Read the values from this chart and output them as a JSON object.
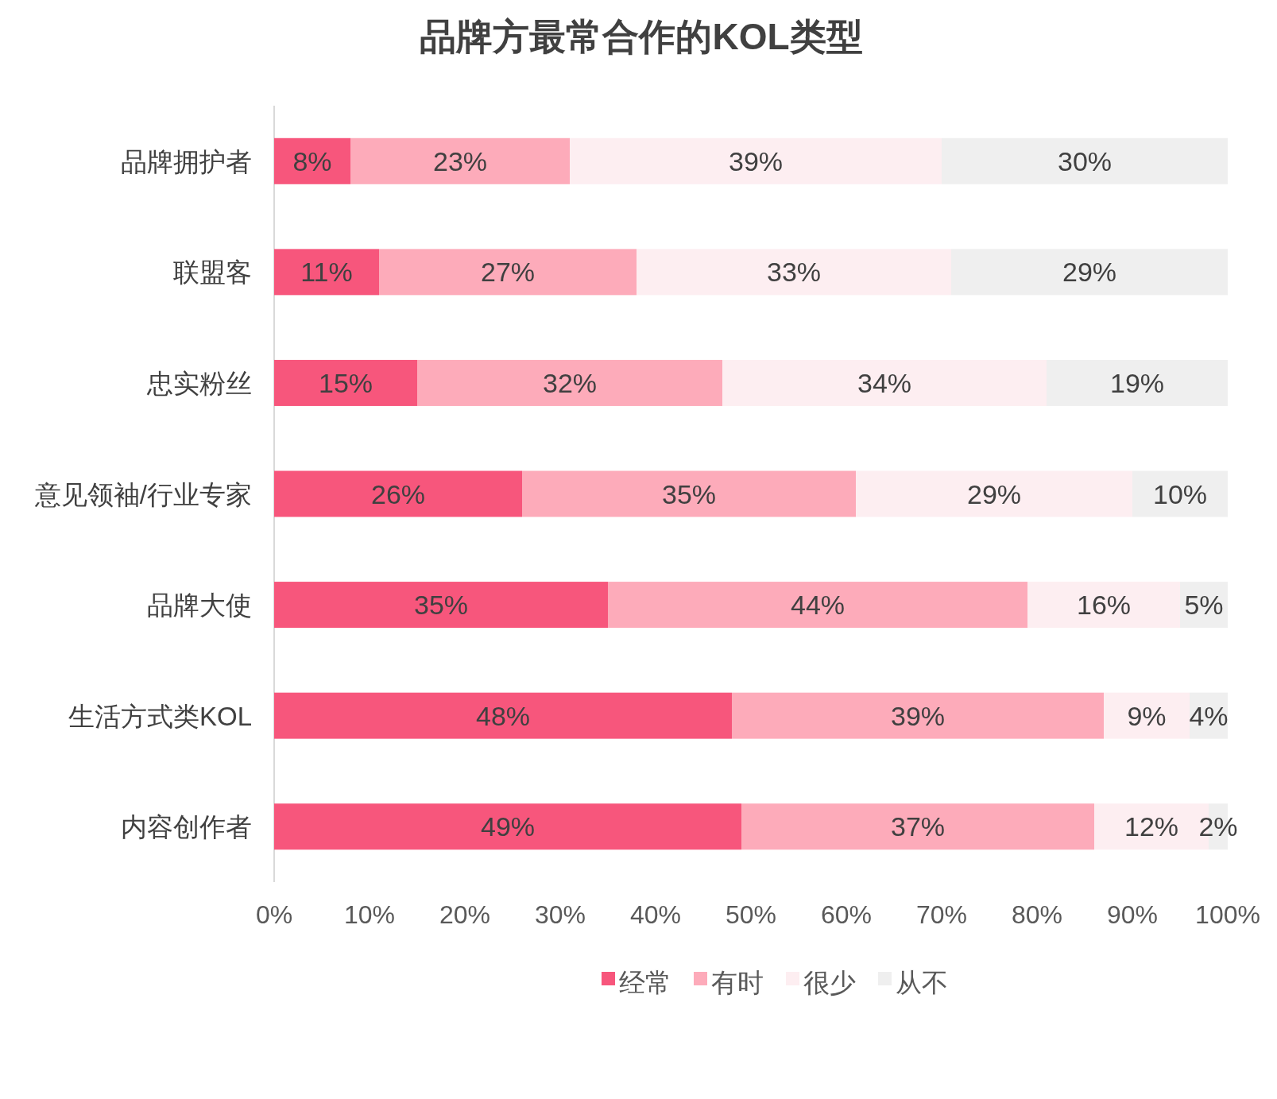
{
  "chart_data": {
    "type": "bar",
    "orientation": "horizontal",
    "stacked": true,
    "title": "品牌方最常合作的KOL类型",
    "categories": [
      "品牌拥护者",
      "联盟客",
      "忠实粉丝",
      "意见领袖/行业专家",
      "品牌大使",
      "生活方式类KOL",
      "内容创作者"
    ],
    "series": [
      {
        "name": "经常",
        "color": "#f7567c",
        "values": [
          8,
          11,
          15,
          26,
          35,
          48,
          49
        ],
        "value_labels": [
          "8%",
          "11%",
          "15%",
          "26%",
          "35%",
          "48%",
          "49%"
        ]
      },
      {
        "name": "有时",
        "color": "#fdabba",
        "values": [
          23,
          27,
          32,
          35,
          44,
          39,
          37
        ],
        "value_labels": [
          "23%",
          "27%",
          "32%",
          "35%",
          "44%",
          "39%",
          "37%"
        ]
      },
      {
        "name": "很少",
        "color": "#fdeef1",
        "values": [
          39,
          33,
          34,
          29,
          16,
          9,
          12
        ],
        "value_labels": [
          "39%",
          "33%",
          "34%",
          "29%",
          "16%",
          "9%",
          "12%"
        ]
      },
      {
        "name": "从不",
        "color": "#efefef",
        "values": [
          30,
          29,
          19,
          10,
          5,
          4,
          2
        ],
        "value_labels": [
          "30%",
          "29%",
          "19%",
          "10%",
          "5%",
          "4%",
          "2%"
        ]
      }
    ],
    "xlim": [
      0,
      100
    ],
    "xticks": [
      {
        "value": 0,
        "label": "0%"
      },
      {
        "value": 10,
        "label": "10%"
      },
      {
        "value": 20,
        "label": "20%"
      },
      {
        "value": 30,
        "label": "30%"
      },
      {
        "value": 40,
        "label": "40%"
      },
      {
        "value": 50,
        "label": "50%"
      },
      {
        "value": 60,
        "label": "60%"
      },
      {
        "value": 70,
        "label": "70%"
      },
      {
        "value": 80,
        "label": "80%"
      },
      {
        "value": 90,
        "label": "90%"
      },
      {
        "value": 100,
        "label": "100%"
      }
    ],
    "legend": "bottom"
  }
}
